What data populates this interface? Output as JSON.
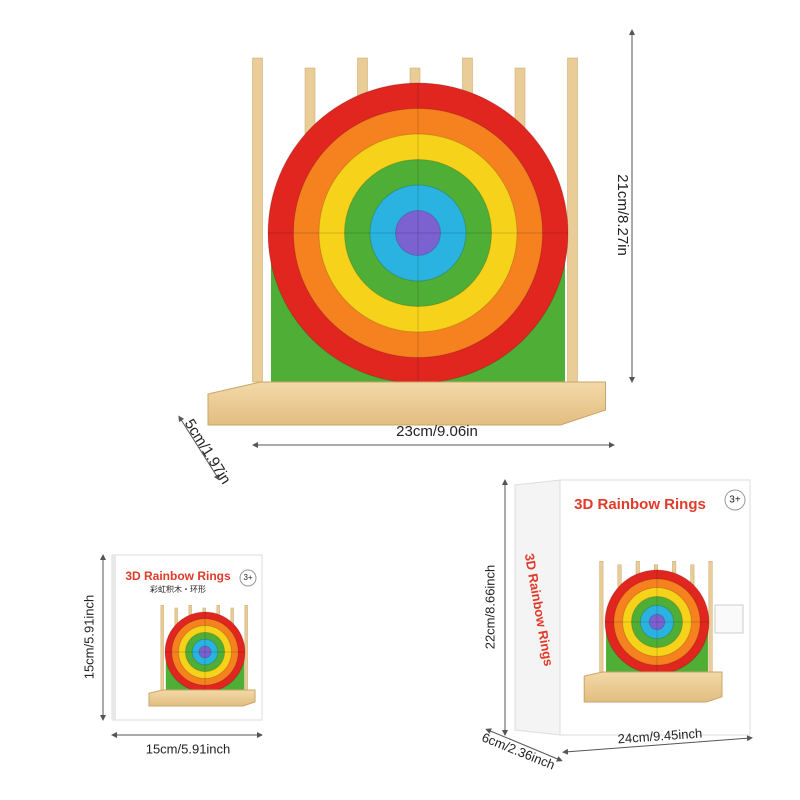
{
  "toy": {
    "height_label": "21cm/8.27in",
    "width_label": "23cm/9.06in",
    "depth_label": "5cm/1.97in"
  },
  "booklet": {
    "title": "3D Rainbow Rings",
    "subtitle": "彩虹积木・环形",
    "age": "3+",
    "height_label": "15cm/5.91inch",
    "width_label": "15cm/5.91inch"
  },
  "box": {
    "title": "3D Rainbow Rings",
    "age": "3+",
    "side_title": "3D Rainbow Rings",
    "height_label": "22cm/8.66inch",
    "depth_label": "6cm/2.36inch",
    "width_label": "24cm/9.45inch"
  }
}
